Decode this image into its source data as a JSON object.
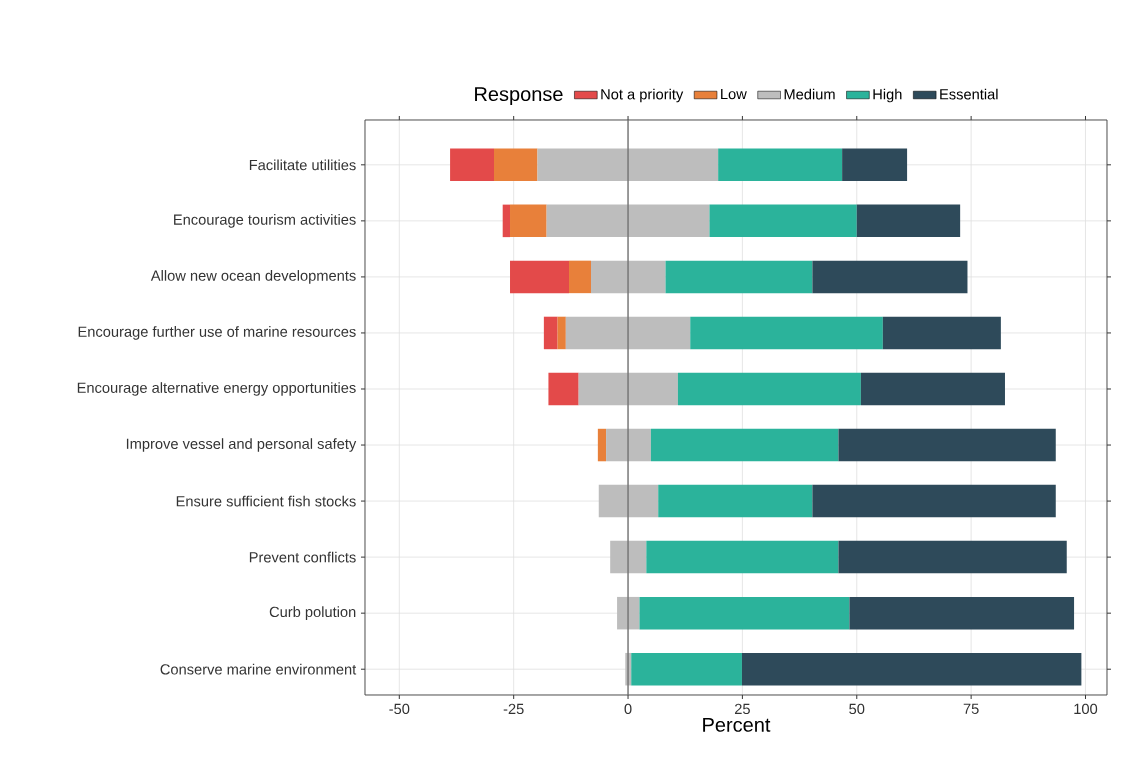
{
  "chart_data": {
    "type": "bar",
    "orientation": "horizontal",
    "xlabel": "Percent",
    "legend_title": "Response",
    "legend": "top",
    "grid": true,
    "categories": [
      "Facilitate utilities",
      "Encourage tourism activities",
      "Allow new ocean developments",
      "Encourage further use of marine resources",
      "Encourage alternative energy opportunities",
      "Improve vessel and personal safety",
      "Ensure sufficient fish stocks",
      "Prevent conflicts",
      "Curb polution",
      "Conserve marine environment"
    ],
    "xlim": [
      -57.5,
      104.7
    ],
    "xticks": [
      -50,
      -25,
      0,
      25,
      50,
      75,
      100
    ],
    "ref_lines": [
      {
        "axis": "x",
        "value": 0,
        "color": "#6e6e6e"
      }
    ],
    "series": [
      {
        "name": "Not a priority",
        "color": "#e34a4a",
        "values": [
          9.6,
          1.6,
          12.9,
          3.0,
          6.6,
          null,
          null,
          null,
          null,
          null
        ],
        "base": [
          -38.9,
          -27.4,
          -25.8,
          -18.4,
          -17.4,
          null,
          null,
          null,
          null,
          null
        ]
      },
      {
        "name": "Low",
        "color": "#e8803a",
        "values": [
          9.5,
          8.0,
          4.8,
          1.8,
          null,
          1.8,
          null,
          null,
          null,
          null
        ],
        "base": [
          -29.3,
          -25.8,
          -12.9,
          -15.4,
          null,
          -6.6,
          null,
          null,
          null,
          null
        ]
      },
      {
        "name": "Medium",
        "color": "#bdbdbd",
        "values": [
          39.5,
          35.6,
          16.3,
          27.2,
          21.7,
          9.8,
          13.0,
          7.9,
          4.9,
          1.3
        ],
        "base": [
          -19.8,
          -17.8,
          -8.1,
          -13.6,
          -10.8,
          -4.8,
          -6.4,
          -3.9,
          -2.4,
          -0.6
        ]
      },
      {
        "name": "High",
        "color": "#2bb39b",
        "values": [
          27.1,
          32.2,
          32.1,
          42.1,
          40.0,
          41.0,
          33.7,
          42.0,
          45.9,
          24.2
        ],
        "base": [
          19.7,
          17.8,
          8.2,
          13.6,
          10.9,
          5.0,
          6.6,
          4.0,
          2.5,
          0.7
        ]
      },
      {
        "name": "Essential",
        "color": "#2e4a5a",
        "values": [
          14.2,
          22.6,
          33.9,
          25.8,
          31.5,
          47.5,
          53.2,
          49.9,
          49.1,
          74.2
        ],
        "base": [
          46.8,
          50.0,
          40.3,
          55.7,
          50.9,
          46.0,
          40.3,
          46.0,
          48.4,
          24.9
        ]
      }
    ]
  }
}
